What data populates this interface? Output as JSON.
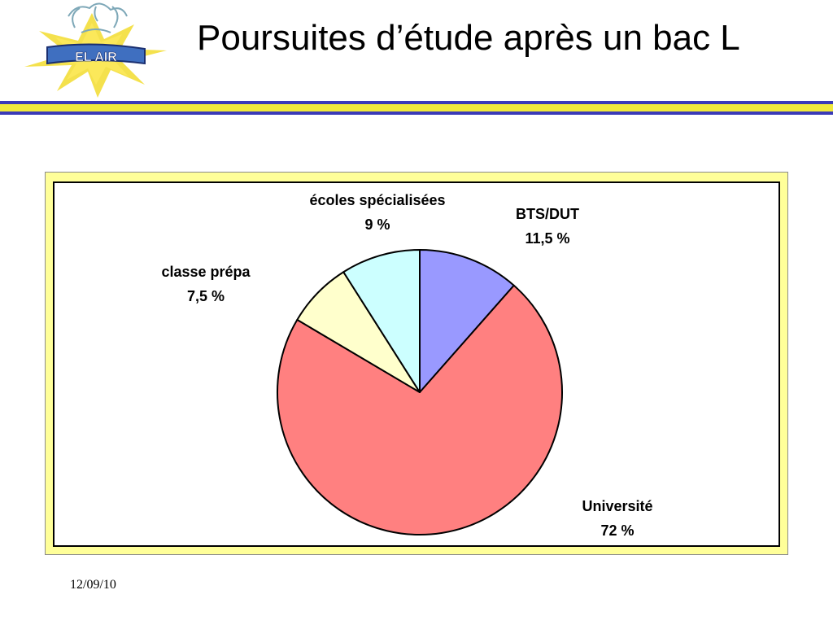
{
  "slide": {
    "title": "Poursuites d’étude après un bac L",
    "date": "12/09/10",
    "logo_text": "EL AIR"
  },
  "colors": {
    "band_blue": "#3a3ab8",
    "band_yellow": "#f0ea3c",
    "chart_border_yellow": "#ffff99",
    "plot_frame": "#000000"
  },
  "chart_data": {
    "type": "pie",
    "title": "",
    "slices": [
      {
        "label": "BTS/DUT",
        "value": 11.5,
        "value_label": "11,5 %",
        "color": "#9999ff"
      },
      {
        "label": "Université",
        "value": 72,
        "value_label": "72 %",
        "color": "#ff8080"
      },
      {
        "label": "classe prépa",
        "value": 7.5,
        "value_label": "7,5 %",
        "color": "#ffffcc"
      },
      {
        "label": "écoles spécialisées",
        "value": 9,
        "value_label": "9 %",
        "color": "#ccffff"
      }
    ],
    "start": "12 o'clock",
    "direction": "clockwise",
    "legend": "none"
  }
}
